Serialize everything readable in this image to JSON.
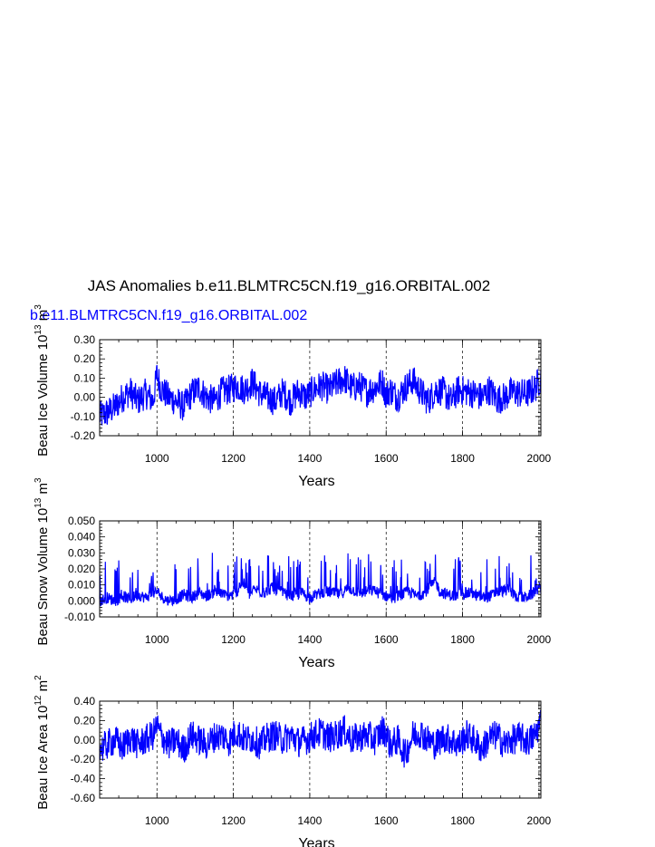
{
  "figure": {
    "title": "JAS Anomalies b.e11.BLMTRC5CN.f19_g16.ORBITAL.002",
    "subtitle": "b.e11.BLMTRC5CN.f19_g16.ORBITAL.002",
    "series_color": "#0000ff"
  },
  "chart_data": [
    {
      "type": "line",
      "xlabel": "Years",
      "ylabel": "Beau Ice Volume 10",
      "ylabel_exp": "13",
      "ylabel_unit": " m",
      "ylabel_unit_exp": "3",
      "xlim": [
        850,
        2005
      ],
      "ylim": [
        -0.2,
        0.3
      ],
      "xticks": [
        "1000",
        "1200",
        "1400",
        "1600",
        "1800",
        "2000"
      ],
      "yticks": [
        "0.30",
        "0.20",
        "0.10",
        "0.00",
        "-0.10",
        "-0.20"
      ],
      "grid": "dashed vertical lines at major x ticks",
      "series": [
        {
          "x": [
            850,
            870,
            890,
            910,
            930,
            950,
            970,
            990,
            1000,
            1010,
            1030,
            1050,
            1070,
            1090,
            1110,
            1130,
            1150,
            1170,
            1190,
            1200,
            1210,
            1230,
            1250,
            1270,
            1290,
            1310,
            1330,
            1350,
            1370,
            1390,
            1410,
            1430,
            1450,
            1470,
            1490,
            1510,
            1530,
            1550,
            1570,
            1590,
            1600,
            1610,
            1630,
            1650,
            1670,
            1690,
            1710,
            1730,
            1750,
            1770,
            1790,
            1810,
            1830,
            1850,
            1870,
            1890,
            1910,
            1930,
            1950,
            1970,
            1990,
            2005
          ],
          "y": [
            -0.1,
            -0.08,
            -0.05,
            0.0,
            0.03,
            -0.02,
            0.02,
            -0.02,
            0.12,
            0.05,
            0.0,
            -0.02,
            -0.05,
            0.02,
            0.05,
            0.0,
            -0.02,
            0.03,
            0.04,
            0.05,
            0.06,
            0.04,
            0.08,
            0.02,
            0.0,
            -0.02,
            0.03,
            -0.02,
            0.03,
            0.0,
            0.04,
            0.06,
            0.04,
            0.07,
            0.1,
            0.05,
            0.06,
            0.03,
            0.05,
            0.08,
            0.01,
            0.04,
            0.0,
            0.05,
            0.09,
            0.03,
            -0.02,
            0.04,
            0.03,
            -0.02,
            0.04,
            0.03,
            0.02,
            0.0,
            0.04,
            -0.01,
            0.0,
            0.03,
            0.02,
            0.02,
            0.05,
            0.1
          ]
        }
      ]
    },
    {
      "type": "line",
      "xlabel": "Years",
      "ylabel": "Beau Snow Volume 10",
      "ylabel_exp": "13",
      "ylabel_unit": " m",
      "ylabel_unit_exp": "3",
      "xlim": [
        850,
        2005
      ],
      "ylim": [
        -0.01,
        0.05
      ],
      "xticks": [
        "1000",
        "1200",
        "1400",
        "1600",
        "1800",
        "2000"
      ],
      "yticks": [
        "0.050",
        "0.040",
        "0.030",
        "0.020",
        "0.010",
        "0.000",
        "-0.010"
      ],
      "grid": "dashed vertical lines at major x ticks",
      "series": [
        {
          "x": [
            850,
            870,
            890,
            910,
            930,
            950,
            970,
            990,
            1000,
            1010,
            1030,
            1050,
            1070,
            1090,
            1110,
            1130,
            1150,
            1170,
            1190,
            1200,
            1210,
            1225,
            1240,
            1260,
            1280,
            1300,
            1320,
            1340,
            1360,
            1380,
            1400,
            1420,
            1440,
            1460,
            1480,
            1500,
            1520,
            1540,
            1560,
            1580,
            1600,
            1620,
            1640,
            1660,
            1680,
            1700,
            1720,
            1730,
            1740,
            1760,
            1780,
            1800,
            1820,
            1840,
            1860,
            1880,
            1900,
            1920,
            1940,
            1960,
            1980,
            2000
          ],
          "y": [
            0.0,
            0.002,
            0.0,
            0.003,
            0.001,
            0.004,
            0.002,
            0.005,
            0.006,
            0.003,
            0.0,
            0.001,
            0.004,
            0.002,
            0.005,
            0.003,
            0.006,
            0.004,
            0.003,
            0.004,
            0.006,
            0.012,
            0.004,
            0.007,
            0.005,
            0.008,
            0.006,
            0.004,
            0.003,
            0.005,
            0.002,
            0.004,
            0.006,
            0.005,
            0.004,
            0.008,
            0.006,
            0.005,
            0.007,
            0.005,
            0.003,
            0.002,
            0.004,
            0.006,
            0.003,
            0.005,
            0.01,
            0.012,
            0.006,
            0.004,
            0.003,
            0.004,
            0.005,
            0.003,
            0.002,
            0.004,
            0.006,
            0.007,
            0.003,
            0.002,
            0.004,
            0.008
          ]
        }
      ]
    },
    {
      "type": "line",
      "xlabel": "Years",
      "ylabel": "Beau Ice Area 10",
      "ylabel_exp": "12",
      "ylabel_unit": " m",
      "ylabel_unit_exp": "2",
      "xlim": [
        850,
        2005
      ],
      "ylim": [
        -0.6,
        0.4
      ],
      "xticks": [
        "1000",
        "1200",
        "1400",
        "1600",
        "1800",
        "2000"
      ],
      "yticks": [
        "0.40",
        "0.20",
        "0.00",
        "-0.20",
        "-0.40",
        "-0.60"
      ],
      "grid": "dashed vertical lines at major x ticks",
      "series": [
        {
          "x": [
            850,
            870,
            890,
            910,
            930,
            950,
            970,
            990,
            1000,
            1010,
            1030,
            1050,
            1070,
            1090,
            1110,
            1130,
            1150,
            1170,
            1190,
            1200,
            1210,
            1230,
            1250,
            1270,
            1290,
            1310,
            1330,
            1350,
            1370,
            1390,
            1410,
            1430,
            1450,
            1470,
            1490,
            1510,
            1530,
            1550,
            1570,
            1590,
            1600,
            1610,
            1630,
            1650,
            1670,
            1690,
            1710,
            1730,
            1750,
            1770,
            1790,
            1810,
            1830,
            1850,
            1870,
            1890,
            1910,
            1930,
            1950,
            1970,
            1990,
            2005
          ],
          "y": [
            -0.1,
            -0.05,
            0.0,
            -0.08,
            0.03,
            -0.05,
            0.0,
            0.05,
            0.15,
            0.05,
            -0.05,
            0.0,
            -0.1,
            0.05,
            0.0,
            -0.05,
            0.03,
            0.05,
            -0.02,
            0.05,
            0.08,
            0.0,
            0.02,
            -0.05,
            0.03,
            0.05,
            0.0,
            0.05,
            -0.02,
            0.0,
            0.05,
            0.08,
            0.02,
            0.05,
            0.1,
            0.0,
            0.03,
            0.05,
            0.0,
            0.1,
            0.08,
            -0.05,
            0.0,
            -0.15,
            0.05,
            0.08,
            0.0,
            -0.05,
            0.03,
            0.0,
            -0.05,
            0.05,
            0.0,
            -0.1,
            0.02,
            0.05,
            -0.05,
            0.0,
            0.03,
            -0.02,
            0.05,
            0.2
          ]
        }
      ]
    }
  ]
}
